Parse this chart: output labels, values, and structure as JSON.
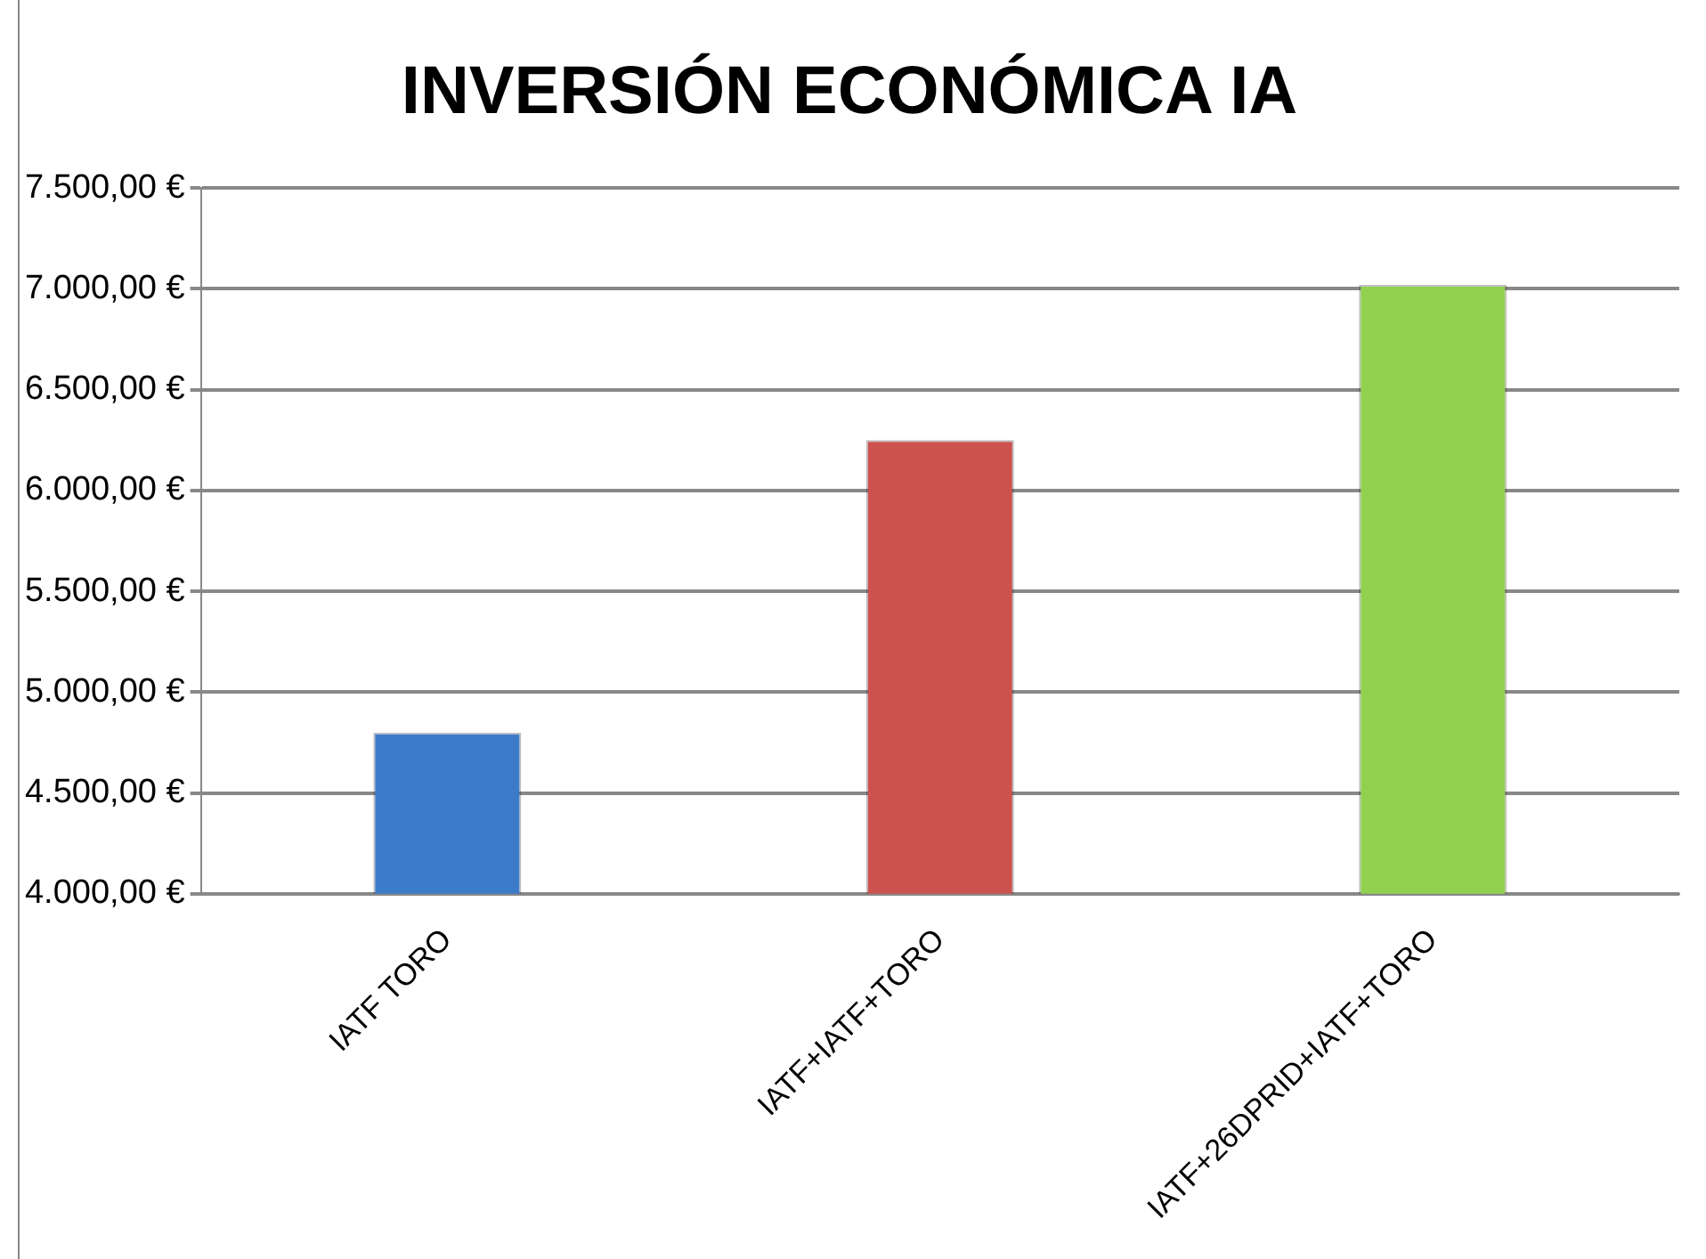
{
  "chart_data": {
    "type": "bar",
    "title": "INVERSIÓN ECONÓMICA IA",
    "categories": [
      "IATF TORO",
      "IATF+IATF+TORO",
      "IATF+26DPRID+IATF+TORO"
    ],
    "values": [
      4800,
      6250,
      7020
    ],
    "colors": [
      "#3c7bc9",
      "#cc5250",
      "#92d050"
    ],
    "ylim": [
      4000,
      7500
    ],
    "yticks": [
      {
        "value": 4000,
        "label": "4.000,00 €"
      },
      {
        "value": 4500,
        "label": "4.500,00 €"
      },
      {
        "value": 5000,
        "label": "5.000,00 €"
      },
      {
        "value": 5500,
        "label": "5.500,00 €"
      },
      {
        "value": 6000,
        "label": "6.000,00 €"
      },
      {
        "value": 6500,
        "label": "6.500,00 €"
      },
      {
        "value": 7000,
        "label": "7.000,00 €"
      },
      {
        "value": 7500,
        "label": "7.500,00 €"
      }
    ],
    "grid": "y",
    "legend": false
  }
}
